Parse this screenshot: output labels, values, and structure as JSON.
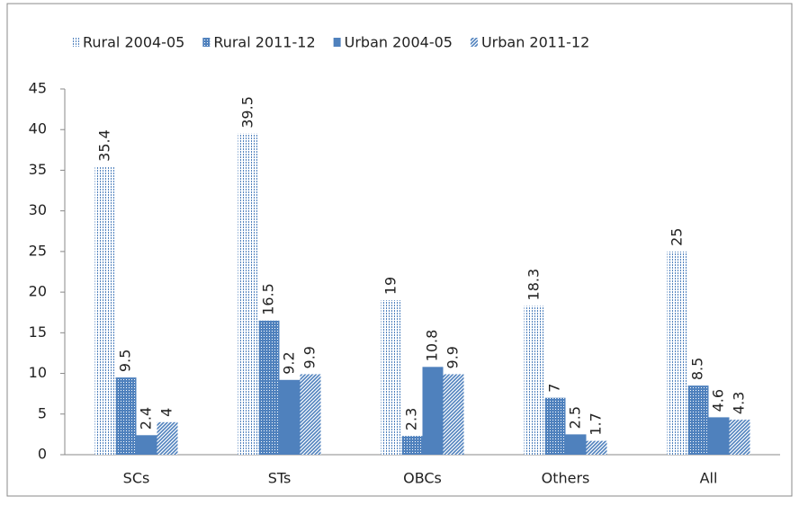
{
  "chart_data": {
    "type": "bar",
    "categories": [
      "SCs",
      "STs",
      "OBCs",
      "Others",
      "All"
    ],
    "series": [
      {
        "name": "Rural 2004-05",
        "color": "#4f81bd",
        "values": [
          35.4,
          39.5,
          19,
          18.3,
          25
        ]
      },
      {
        "name": "Rural 2011-12",
        "color": "#4f81bd",
        "values": [
          9.5,
          16.5,
          2.3,
          7,
          8.5
        ]
      },
      {
        "name": "Urban 2004-05",
        "color": "#4f81bd",
        "values": [
          2.4,
          9.2,
          10.8,
          2.5,
          4.6
        ]
      },
      {
        "name": "Urban 2011-12",
        "color": "#4f81bd",
        "values": [
          4,
          9.9,
          9.9,
          1.7,
          4.3
        ]
      }
    ],
    "ylim": [
      0,
      45
    ],
    "yticks": [
      0,
      5,
      10,
      15,
      20,
      25,
      30,
      35,
      40,
      45
    ],
    "grid": false,
    "legend": "top"
  }
}
